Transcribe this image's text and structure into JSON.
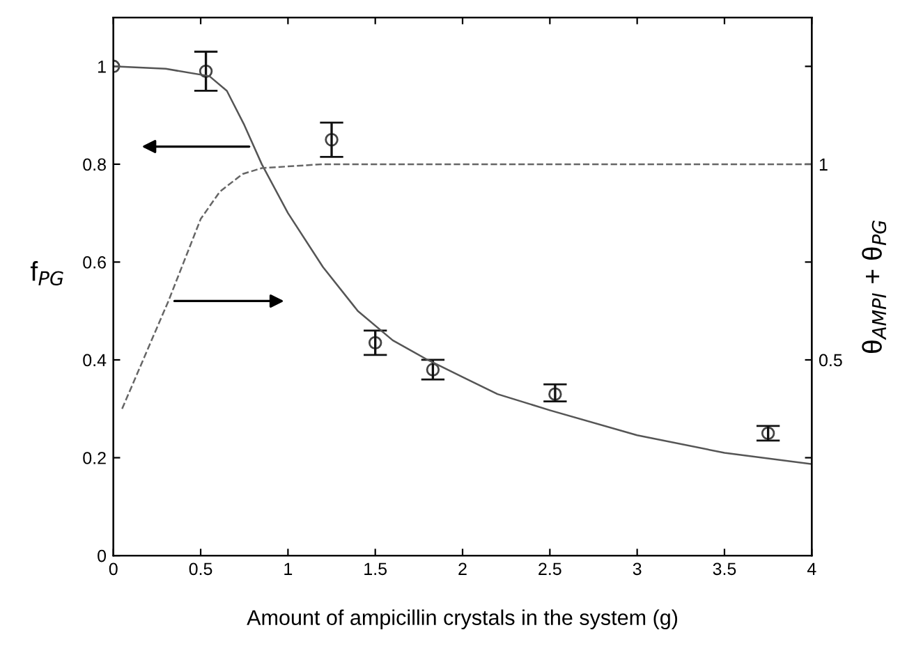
{
  "chart_data": {
    "type": "line",
    "xlabel": "Amount of ampicillin crystals in the system (g)",
    "ylabel": "f$_{PG}$",
    "y2label": "θ$_{AMPI}$ + θ$_{PG}$",
    "xlim": [
      0,
      4
    ],
    "xticks": [
      0,
      0.5,
      1,
      1.5,
      2,
      2.5,
      3,
      3.5,
      4
    ],
    "ylim": [
      0,
      1.1
    ],
    "yticks": [
      0,
      0.2,
      0.4,
      0.6,
      0.8,
      1
    ],
    "y2lim": [
      0,
      1.375
    ],
    "y2ticks": [
      {
        "value": 0.25,
        "label": null
      },
      0.5,
      {
        "value": 0.75,
        "label": null
      },
      1,
      {
        "value": 1.25,
        "label": null
      }
    ],
    "grid": false,
    "legend": false,
    "series": [
      {
        "type": "scatter",
        "marker": "circle",
        "color": "#444444",
        "x": [
          0,
          0.53,
          1.25,
          1.5,
          1.83,
          2.53,
          3.75
        ],
        "values": [
          1.0,
          0.99,
          0.85,
          0.435,
          0.38,
          0.33,
          0.25
        ],
        "errors": [
          null,
          [
            0.95,
            1.03
          ],
          [
            0.815,
            0.885
          ],
          [
            0.41,
            0.46
          ],
          [
            0.36,
            0.4
          ],
          [
            0.315,
            0.35
          ],
          [
            0.235,
            0.265
          ]
        ]
      },
      {
        "line_style": "solid",
        "color": "#555555",
        "x": [
          0,
          0.3,
          0.55,
          0.65,
          0.75,
          0.85,
          1.0,
          1.2,
          1.4,
          1.6,
          1.8,
          2.0,
          2.2,
          2.5,
          3.0,
          3.5,
          4.0
        ],
        "values": [
          1.0,
          0.995,
          0.98,
          0.95,
          0.88,
          0.8,
          0.7,
          0.59,
          0.5,
          0.44,
          0.4,
          0.365,
          0.33,
          0.297,
          0.246,
          0.21,
          0.187
        ]
      },
      {
        "line_style": "dashed",
        "axis": "y2",
        "color": "#666666",
        "x": [
          0.05,
          0.315,
          0.5,
          0.61,
          0.74,
          0.85,
          1.2,
          4.0
        ],
        "values": [
          0.375,
          0.65,
          0.86,
          0.93,
          0.975,
          0.99,
          1.0,
          1.0
        ]
      }
    ]
  }
}
